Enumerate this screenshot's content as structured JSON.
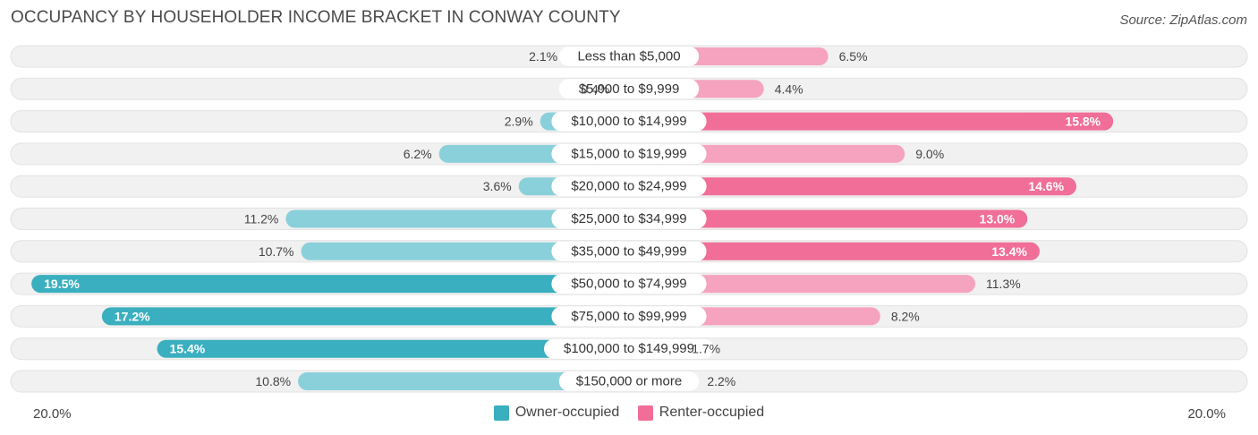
{
  "header": {
    "title": "OCCUPANCY BY HOUSEHOLDER INCOME BRACKET IN CONWAY COUNTY",
    "source": "Source: ZipAtlas.com"
  },
  "colors": {
    "owner": "#3aafbf",
    "owner_light": "#8ad0da",
    "renter": "#f06e98",
    "renter_light": "#f5a3bf",
    "row_bg": "#f1f1f1"
  },
  "chart_data": {
    "type": "bar",
    "orientation": "horizontal-diverging",
    "categories": [
      "Less than $5,000",
      "$5,000 to $9,999",
      "$10,000 to $14,999",
      "$15,000 to $19,999",
      "$20,000 to $24,999",
      "$25,000 to $34,999",
      "$35,000 to $49,999",
      "$50,000 to $74,999",
      "$75,000 to $99,999",
      "$100,000 to $149,999",
      "$150,000 or more"
    ],
    "series": [
      {
        "name": "Owner-occupied",
        "values": [
          2.1,
          0.4,
          2.9,
          6.2,
          3.6,
          11.2,
          10.7,
          19.5,
          17.2,
          15.4,
          10.8
        ],
        "labels": [
          "2.1%",
          "0.4%",
          "2.9%",
          "6.2%",
          "3.6%",
          "11.2%",
          "10.7%",
          "19.5%",
          "17.2%",
          "15.4%",
          "10.8%"
        ]
      },
      {
        "name": "Renter-occupied",
        "values": [
          6.5,
          4.4,
          15.8,
          9.0,
          14.6,
          13.0,
          13.4,
          11.3,
          8.2,
          1.7,
          2.2
        ],
        "labels": [
          "6.5%",
          "4.4%",
          "15.8%",
          "9.0%",
          "14.6%",
          "13.0%",
          "13.4%",
          "11.3%",
          "8.2%",
          "1.7%",
          "2.2%"
        ]
      }
    ],
    "axis_max": 20.0,
    "axis_left_label": "20.0%",
    "axis_right_label": "20.0%",
    "legend": [
      "Owner-occupied",
      "Renter-occupied"
    ],
    "legend_position": "bottom-center"
  }
}
